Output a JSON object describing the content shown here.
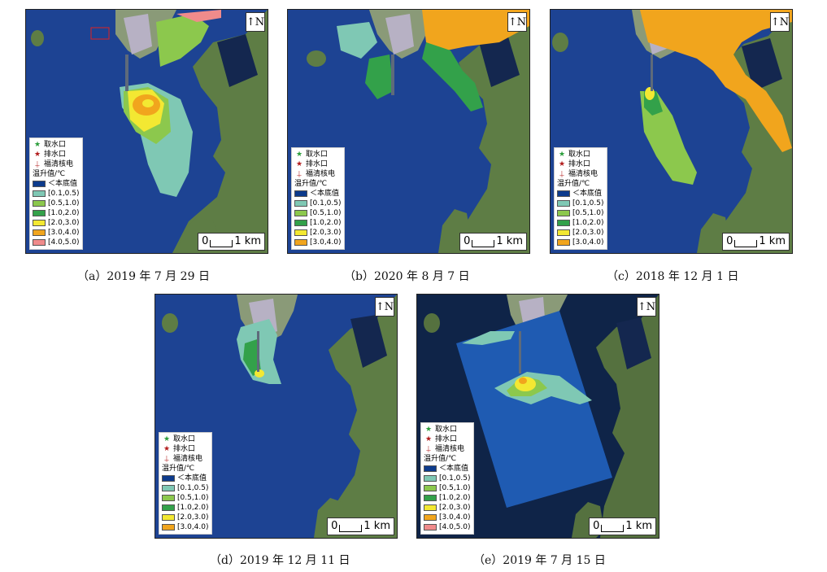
{
  "colors": {
    "sea": "#1d4393",
    "land": "#5e7d45",
    "c0": "#7fc8b4",
    "c1": "#8cc84d",
    "c2": "#33a14a",
    "c3": "#f3e832",
    "c4": "#f1a51d",
    "c5": "#f08b8b",
    "below": "#0d3b8c"
  },
  "north_label": "N",
  "scale": {
    "zero": "0",
    "unit": "1 km"
  },
  "legend_symbols": {
    "intake": "取水口",
    "outfall": "排水口",
    "plant": "福清核电",
    "title": "温升值/℃",
    "below": "＜本底值"
  },
  "panels": [
    {
      "caption": "（a）2019 年 7 月 29 日",
      "classes": [
        "[0.1,0.5)",
        "[0.5,1.0)",
        "[1.0,2.0)",
        "[2.0,3.0)",
        "[3.0,4.0)",
        "[4.0,5.0)"
      ]
    },
    {
      "caption": "（b）2020 年 8 月 7 日",
      "classes": [
        "[0.1,0.5)",
        "[0.5,1.0)",
        "[1.0,2.0)",
        "[2.0,3.0)",
        "[3.0,4.0)"
      ]
    },
    {
      "caption": "（c）2018 年 12 月 1 日",
      "classes": [
        "[0.1,0.5)",
        "[0.5,1.0)",
        "[1.0,2.0)",
        "[2.0,3.0)",
        "[3.0,4.0)"
      ]
    },
    {
      "caption": "（d）2019 年 12 月 11 日",
      "classes": [
        "[0.1,0.5)",
        "[0.5,1.0)",
        "[1.0,2.0)",
        "[2.0,3.0)",
        "[3.0,4.0)"
      ]
    },
    {
      "caption": "（e）2019 年 7 月 15 日",
      "classes": [
        "[0.1,0.5)",
        "[0.5,1.0)",
        "[1.0,2.0)",
        "[2.0,3.0)",
        "[3.0,4.0)",
        "[4.0,5.0)"
      ]
    }
  ]
}
